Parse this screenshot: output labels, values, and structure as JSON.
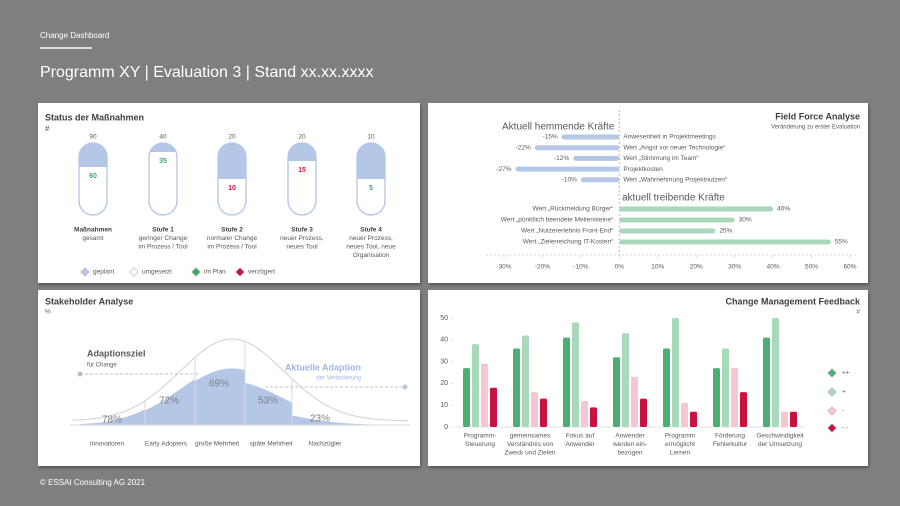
{
  "header": {
    "subtitle": "Change Dashboard",
    "title": "Programm XY | Evaluation 3 | Stand xx.xx.xxxx"
  },
  "chart_data": [
    {
      "type": "progress",
      "title": "Status der Maßnahmen",
      "unit": "#",
      "categories": [
        [
          "Maßnahmen",
          "gesamt"
        ],
        [
          "Stufe 1",
          "geringer Change",
          "im Prozess / Tool"
        ],
        [
          "Stufe 2",
          "normaler Change",
          "im Prozess / Tool"
        ],
        [
          "Stufe 3",
          "neuer Prozess,",
          "neues Tool"
        ],
        [
          "Stufe 4",
          "neuer Prozess,",
          "neues Tool, neue",
          "Organisation"
        ]
      ],
      "series": [
        {
          "name": "geplant",
          "color": "#b4c7e7",
          "values": [
            90,
            40,
            20,
            20,
            10
          ]
        },
        {
          "name": "umgesetzt",
          "color": "#ffffff",
          "values": [
            60,
            35,
            10,
            15,
            5
          ]
        }
      ],
      "status": [
        {
          "name": "im Plan",
          "color": "#3daa63"
        },
        {
          "name": "verzögert",
          "color": "#c8143c"
        }
      ],
      "done_colors": [
        "#3daa63",
        "#3daa63",
        "#c8143c",
        "#c8143c",
        "#3daa63"
      ]
    },
    {
      "type": "bar",
      "orientation": "horizontal",
      "title": "Field Force Analyse",
      "subtitle": "Veränderung zu erster Evaluation",
      "groups": [
        {
          "name": "Aktuell hemmende Kräfte",
          "color": "#b4c7e7",
          "categories": [
            "Anwesenheit in Projektmeetings",
            "Wert „Angst vor neuer Technologie“",
            "Wert „Stimmung im Team“",
            "Projektkosten",
            "Wert „Wahrnehmung Projektnutzen“"
          ],
          "values": [
            -15,
            -22,
            -12,
            -27,
            -10
          ],
          "value_labels": [
            "-15%",
            "-22%",
            "-12%",
            "-27%",
            "-10%"
          ]
        },
        {
          "name": "aktuell treibende Kräfte",
          "color": "#a9d8b8",
          "categories": [
            "Wert „Rückmeldung Bürger“",
            "Wert „pünktlich beendete Meilensteine“",
            "Wert „Nutzererlebnis Front-End“",
            "Wert „Zielerreichung IT-Kosten“"
          ],
          "values": [
            40,
            30,
            25,
            55
          ],
          "value_labels": [
            "40%",
            "30%",
            "25%",
            "55%"
          ]
        }
      ],
      "xlim": [
        -30,
        60
      ],
      "xticks": [
        {
          "value": -30,
          "label": "-30%"
        },
        {
          "value": -20,
          "label": "-20%"
        },
        {
          "value": -10,
          "label": "-10%"
        },
        {
          "value": 0,
          "label": "0%"
        },
        {
          "value": 10,
          "label": "10%"
        },
        {
          "value": 20,
          "label": "20%"
        },
        {
          "value": 30,
          "label": "30%"
        },
        {
          "value": 40,
          "label": "40%"
        },
        {
          "value": 50,
          "label": "50%"
        },
        {
          "value": 60,
          "label": "60%"
        }
      ]
    },
    {
      "type": "area",
      "title": "Stakeholder Analyse",
      "unit": "%",
      "color": "#b4c7e7",
      "categories": [
        "Innovatoren",
        "Early Adopters",
        "große Mehrheit",
        "späte Mehrheit",
        "Nachzügler"
      ],
      "values": [
        78,
        72,
        69,
        53,
        23
      ],
      "value_labels": [
        "78%",
        "72%",
        "69%",
        "53%",
        "23%"
      ],
      "annotations": [
        {
          "title": "Adaptionsziel",
          "text": "für Change"
        },
        {
          "title": "Aktuelle Adaption",
          "text": "der Veränderung"
        }
      ]
    },
    {
      "type": "bar",
      "title": "Change Management Feedback",
      "unit": "#",
      "categories": [
        [
          "Programm-",
          "Steuerung"
        ],
        [
          "gemeinsames",
          "Verständnis von",
          "Zweck und Zielen"
        ],
        [
          "Fokus auf",
          "Anwender"
        ],
        [
          "Anwender",
          "werden ein-",
          "bezogen"
        ],
        [
          "Programm",
          "ermöglicht",
          "Lernen"
        ],
        [
          "Förderung",
          "Fehlerkultur"
        ],
        [
          "Geschwindigkeit",
          "der Umsetzung"
        ]
      ],
      "series": [
        {
          "name": "++",
          "color": "#4caf72",
          "values": [
            27,
            36,
            41,
            32,
            36,
            27,
            41
          ]
        },
        {
          "name": "+",
          "color": "#a8d9b8",
          "values": [
            38,
            42,
            48,
            43,
            50,
            36,
            50
          ]
        },
        {
          "name": "-",
          "color": "#f7c6d3",
          "values": [
            29,
            16,
            12,
            23,
            11,
            27,
            7
          ]
        },
        {
          "name": "- -",
          "color": "#c9123f",
          "values": [
            18,
            13,
            9,
            13,
            7,
            16,
            7
          ]
        }
      ],
      "ylim": [
        0,
        50
      ],
      "yticks": [
        0,
        10,
        20,
        30,
        40,
        50
      ],
      "legend": "right"
    }
  ],
  "footer": "© ESSAI Consulting AG 2021"
}
